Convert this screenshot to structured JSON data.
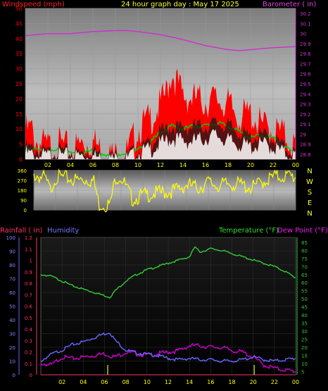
{
  "header": {
    "left": "Windspeed (mph)",
    "center": "24 hour graph day : May 17 2025",
    "right": "Barometer ( in)"
  },
  "panel3_header": {
    "rain": "Rainfall ( in)",
    "humidity": "Humidity",
    "temperature": "Temperature (°F)",
    "dewpoint": "Dew Point (°F)"
  },
  "compass": [
    "N",
    "W",
    "S",
    "E",
    "N"
  ],
  "colors": {
    "windspeed": "#ff0000",
    "gust_avg": "#00cc00",
    "wind_low": "#ffffff",
    "barometer": "#cc33cc",
    "direction": "#ffff00",
    "rain_axis": "#ff3366",
    "humidity": "#6666ff",
    "temperature": "#33cc33",
    "dewpoint": "#cc00cc",
    "rain_tick": "#aacc00"
  },
  "chart_data": [
    {
      "type": "area",
      "name": "wind-barometer",
      "x_ticks": [
        "02",
        "04",
        "06",
        "08",
        "10",
        "12",
        "14",
        "16",
        "18",
        "20",
        "22",
        "00"
      ],
      "y_left": {
        "label": "Windspeed (mph)",
        "ticks": [
          "0",
          "5",
          "10",
          "15",
          "20",
          "25",
          "30",
          "35",
          "40",
          "45",
          "50"
        ],
        "range": [
          0,
          50
        ]
      },
      "y_right": {
        "label": "Barometer ( in)",
        "ticks": [
          "28.8",
          "28.9",
          "29",
          "29.1",
          "29.2",
          "29.3",
          "29.4",
          "29.5",
          "29.6",
          "29.7",
          "29.8",
          "29.9",
          "30",
          "30.1",
          "30.2"
        ],
        "range": [
          28.75,
          30.25
        ]
      },
      "series": [
        {
          "key": "barometer",
          "x": [
            0,
            2,
            4,
            6,
            8,
            9,
            10,
            12,
            14,
            16,
            18,
            19,
            20,
            22,
            24
          ],
          "values": [
            29.98,
            30.0,
            30.0,
            30.02,
            30.03,
            30.03,
            30.02,
            29.99,
            29.94,
            29.88,
            29.84,
            29.83,
            29.84,
            29.86,
            29.87
          ]
        },
        {
          "key": "wind_max",
          "x": [
            0,
            0.5,
            1,
            2,
            3,
            4,
            5,
            6,
            7,
            8,
            9,
            10,
            11,
            12,
            12.5,
            13,
            13.5,
            14,
            15,
            16,
            17,
            18,
            19,
            20,
            21,
            22,
            23,
            24
          ],
          "values": [
            9,
            10,
            6,
            4,
            5,
            3,
            5,
            6,
            2,
            1,
            2,
            10,
            13,
            18,
            22,
            29,
            25,
            21,
            20,
            19,
            20,
            18,
            14,
            15,
            11,
            10,
            8,
            4
          ]
        },
        {
          "key": "wind_avg",
          "x": [
            0,
            1,
            2,
            3,
            4,
            5,
            6,
            7,
            8,
            9,
            10,
            11,
            12,
            13,
            14,
            15,
            16,
            17,
            18,
            19,
            20,
            21,
            22,
            23,
            24
          ],
          "values": [
            4,
            3,
            2,
            3,
            2,
            2,
            3,
            1,
            1,
            1,
            3,
            5,
            9,
            11,
            10,
            11,
            11,
            12,
            11,
            9,
            7,
            8,
            7,
            4,
            2
          ]
        },
        {
          "key": "wind_min",
          "x": [
            0,
            1,
            2,
            3,
            4,
            5,
            6,
            7,
            8,
            9,
            10,
            11,
            12,
            13,
            14,
            15,
            16,
            17,
            18,
            19,
            20,
            21,
            22,
            23,
            24
          ],
          "values": [
            2,
            1,
            1,
            1,
            1,
            1,
            1,
            0,
            0,
            0,
            2,
            3,
            5,
            7,
            6,
            6,
            7,
            8,
            6,
            5,
            4,
            5,
            4,
            2,
            1
          ]
        }
      ]
    },
    {
      "type": "line",
      "name": "wind-direction",
      "y_ticks": [
        "360",
        "270",
        "180",
        "90",
        "0"
      ],
      "range": [
        0,
        360
      ],
      "series": [
        {
          "key": "direction",
          "x": [
            0,
            1,
            1.5,
            2,
            3,
            4,
            5,
            5.5,
            6,
            7,
            7.5,
            8,
            9,
            10,
            11,
            12,
            13,
            14,
            15,
            16,
            17,
            18,
            19,
            20,
            21,
            22,
            23,
            24
          ],
          "values": [
            320,
            290,
            180,
            300,
            290,
            270,
            280,
            260,
            50,
            50,
            300,
            300,
            100,
            130,
            150,
            160,
            180,
            230,
            200,
            250,
            220,
            240,
            230,
            200,
            260,
            300,
            310,
            300
          ]
        }
      ]
    },
    {
      "type": "line",
      "name": "rain-humidity-temp",
      "y_humidity": {
        "label": "Humidity",
        "ticks": [
          "0",
          "10",
          "20",
          "30",
          "40",
          "50",
          "60",
          "70",
          "80",
          "90",
          "100"
        ],
        "range": [
          0,
          100
        ]
      },
      "y_rain": {
        "label": "Rainfall ( in)",
        "ticks": [
          "0",
          "0.1",
          "0.2",
          "0.3",
          "0.4",
          "0.5",
          "0.6",
          "0.7",
          "0.8",
          "0.9",
          "1",
          "1.1",
          "1.2"
        ],
        "range": [
          0,
          1.2
        ]
      },
      "y_temp": {
        "label": "Temperature (°F)",
        "ticks": [
          "5",
          "10",
          "15",
          "20",
          "25",
          "30",
          "35",
          "40",
          "45",
          "50",
          "55",
          "60",
          "65",
          "70",
          "75",
          "80",
          "85"
        ],
        "range": [
          3,
          88
        ]
      },
      "series": [
        {
          "key": "temperature",
          "x": [
            0,
            1,
            2,
            3,
            4,
            5,
            6,
            6.5,
            7,
            8,
            9,
            10,
            11,
            12,
            13,
            14,
            14.5,
            15,
            16,
            17,
            18,
            19,
            20,
            21,
            22,
            23,
            24
          ],
          "values": [
            65,
            64,
            61,
            58,
            56,
            54,
            52,
            51,
            55,
            61,
            65,
            68,
            70,
            72,
            74,
            76,
            82,
            79,
            81,
            80,
            78,
            76,
            74,
            72,
            70,
            67,
            63
          ]
        },
        {
          "key": "dewpoint",
          "x": [
            0,
            1,
            2,
            3,
            4,
            5,
            6,
            7,
            8,
            9,
            10,
            11,
            12,
            13,
            14,
            15,
            16,
            17,
            18,
            19,
            20,
            21,
            22,
            23,
            24
          ],
          "values": [
            10,
            9,
            14,
            13,
            14,
            15,
            16,
            14,
            17,
            16,
            15,
            16,
            17,
            18,
            21,
            21,
            20,
            20,
            18,
            17,
            14,
            9,
            7,
            6,
            5
          ]
        },
        {
          "key": "humidity",
          "x": [
            0,
            1,
            2,
            3,
            4,
            5,
            6,
            6.5,
            7,
            8,
            9,
            10,
            11,
            12,
            13,
            14,
            15,
            16,
            17,
            18,
            19,
            20,
            21,
            22,
            23,
            24
          ],
          "values": [
            10,
            15,
            18,
            22,
            24,
            27,
            30,
            31,
            25,
            18,
            16,
            15,
            14,
            12,
            11,
            12,
            11,
            11,
            10,
            10,
            11,
            13,
            11,
            10,
            11,
            12
          ]
        },
        {
          "key": "rain",
          "x": [
            0,
            24
          ],
          "values": [
            0,
            0
          ]
        }
      ],
      "rain_markers": [
        6.3,
        20.1
      ]
    }
  ]
}
